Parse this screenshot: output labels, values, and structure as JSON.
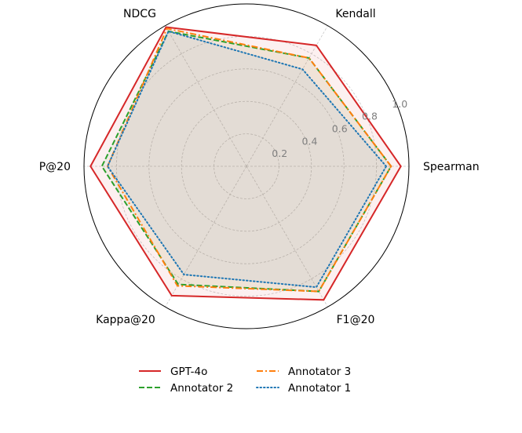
{
  "chart_data": {
    "type": "radar",
    "categories": [
      "Spearman",
      "Kendall",
      "NDCG",
      "P@20",
      "Kappa@20",
      "F1@20"
    ],
    "rlim": [
      0,
      1.0
    ],
    "rticks": [
      "0.2",
      "0.4",
      "0.6",
      "0.8",
      "1.0"
    ],
    "grid": true,
    "legend_placement": "bottom",
    "series": [
      {
        "name": "GPT-4o",
        "color": "#d62728",
        "style": "solid",
        "values": [
          0.95,
          0.86,
          0.99,
          0.96,
          0.92,
          0.95
        ]
      },
      {
        "name": "Annotator 2",
        "color": "#2ca02c",
        "style": "dashed",
        "values": [
          0.89,
          0.77,
          0.96,
          0.89,
          0.84,
          0.89
        ]
      },
      {
        "name": "Annotator 3",
        "color": "#ff7f0e",
        "style": "dashdot",
        "values": [
          0.89,
          0.77,
          0.98,
          0.855,
          0.85,
          0.89
        ]
      },
      {
        "name": "Annotator 1",
        "color": "#1f77b4",
        "style": "dotted",
        "values": [
          0.86,
          0.69,
          0.96,
          0.855,
          0.77,
          0.86
        ]
      }
    ]
  }
}
